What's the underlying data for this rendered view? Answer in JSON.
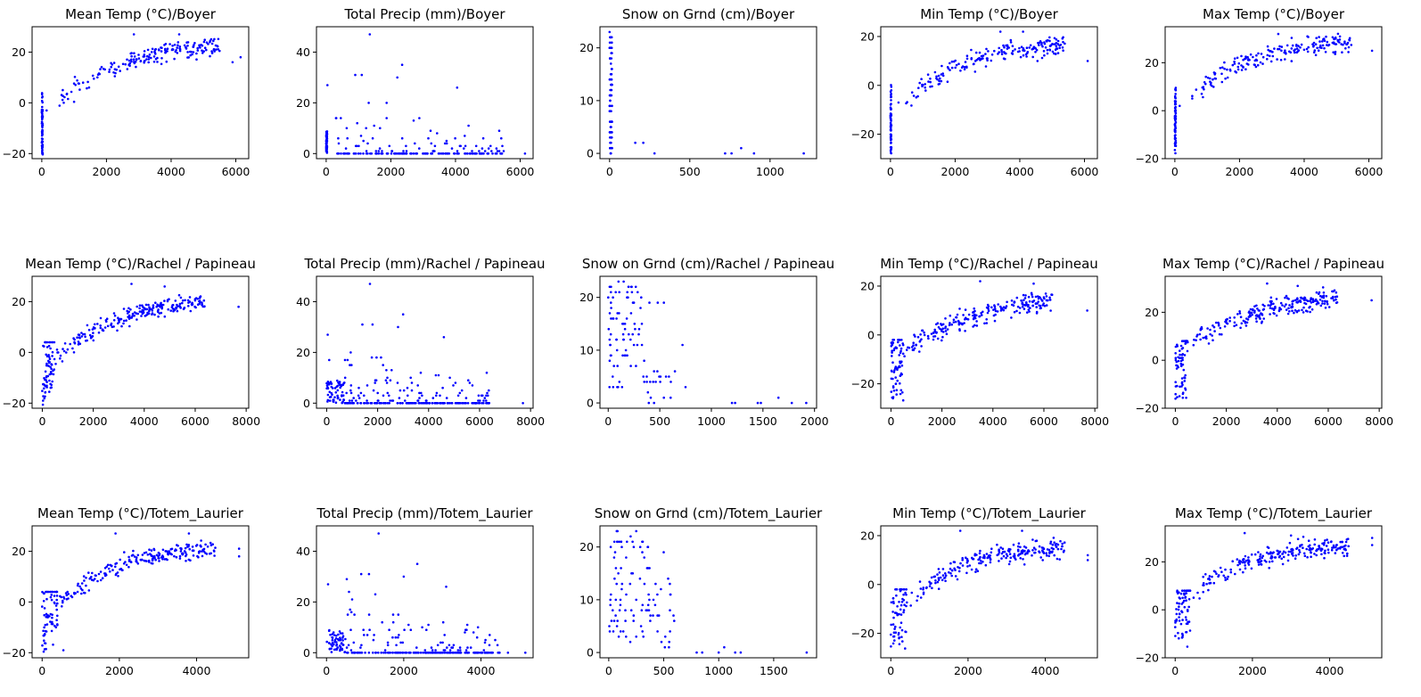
{
  "figure_title": "",
  "chart_data": [
    {
      "type": "scatter",
      "title": "Mean Temp (°C)/Boyer",
      "color": "#0000ff",
      "xlim": [
        -300,
        6400
      ],
      "ylim": [
        -22,
        30
      ],
      "xticks": [
        0,
        2000,
        4000,
        6000
      ],
      "yticks": [
        -20,
        0,
        20
      ],
      "seed": 11,
      "clusters": [
        {
          "n": 60,
          "x": [
            0,
            30
          ],
          "y": [
            -21,
            4
          ]
        }
      ],
      "trend": {
        "n": 190,
        "x": [
          400,
          5500
        ],
        "y0": -2,
        "ymax": 24,
        "k": 0.9,
        "spread": 6
      },
      "points": [
        [
          6150,
          18
        ],
        [
          5900,
          16
        ],
        [
          2850,
          27
        ],
        [
          4250,
          27
        ],
        [
          150,
          -3
        ]
      ]
    },
    {
      "type": "scatter",
      "title": "Total Precip (mm)/Boyer",
      "color": "#0000ff",
      "xlim": [
        -300,
        6400
      ],
      "ylim": [
        -2,
        50
      ],
      "xticks": [
        0,
        2000,
        4000,
        6000
      ],
      "yticks": [
        0,
        20,
        40
      ],
      "seed": 12,
      "clusters": [
        {
          "n": 50,
          "x": [
            0,
            30
          ],
          "y": [
            0,
            9
          ]
        }
      ],
      "precip": {
        "n": 200,
        "x": [
          300,
          5500
        ],
        "zeroFrac": 0.55,
        "decay": 0.00025
      },
      "points": [
        [
          1350,
          47
        ],
        [
          4050,
          26
        ],
        [
          6150,
          0
        ],
        [
          2350,
          35
        ],
        [
          900,
          31
        ],
        [
          1100,
          31
        ],
        [
          2200,
          30
        ],
        [
          40,
          27
        ]
      ]
    },
    {
      "type": "scatter",
      "title": "Snow on Grnd (cm)/Boyer",
      "color": "#0000ff",
      "xlim": [
        -60,
        1290
      ],
      "ylim": [
        -1,
        24
      ],
      "xticks": [
        0,
        500,
        1000
      ],
      "yticks": [
        0,
        10,
        20
      ],
      "seed": 13,
      "clusters": [
        {
          "n": 90,
          "x": [
            0,
            15
          ],
          "y": [
            0,
            23
          ],
          "round": true
        }
      ],
      "points": [
        [
          160,
          2
        ],
        [
          210,
          2
        ],
        [
          280,
          0
        ],
        [
          720,
          0
        ],
        [
          760,
          0
        ],
        [
          820,
          1
        ],
        [
          900,
          0
        ],
        [
          1210,
          0
        ],
        [
          0,
          23
        ],
        [
          5,
          22
        ]
      ]
    },
    {
      "type": "scatter",
      "title": "Min Temp (°C)/Boyer",
      "color": "#0000ff",
      "xlim": [
        -300,
        6400
      ],
      "ylim": [
        -30,
        24
      ],
      "xticks": [
        0,
        2000,
        4000,
        6000
      ],
      "yticks": [
        -20,
        0,
        20
      ],
      "seed": 14,
      "clusters": [
        {
          "n": 60,
          "x": [
            0,
            30
          ],
          "y": [
            -28,
            2
          ]
        }
      ],
      "trend": {
        "n": 190,
        "x": [
          400,
          5500
        ],
        "y0": -7,
        "ymax": 18,
        "k": 0.9,
        "spread": 7
      },
      "points": [
        [
          6100,
          10
        ],
        [
          4100,
          22
        ],
        [
          3400,
          22
        ],
        [
          250,
          -7
        ]
      ]
    },
    {
      "type": "scatter",
      "title": "Max Temp (°C)/Boyer",
      "color": "#0000ff",
      "xlim": [
        -300,
        6400
      ],
      "ylim": [
        -20,
        35
      ],
      "xticks": [
        0,
        2000,
        4000,
        6000
      ],
      "yticks": [
        -20,
        0,
        20
      ],
      "seed": 15,
      "clusters": [
        {
          "n": 60,
          "x": [
            0,
            30
          ],
          "y": [
            -18,
            10
          ]
        }
      ],
      "trend": {
        "n": 190,
        "x": [
          400,
          5500
        ],
        "y0": 5,
        "ymax": 30,
        "k": 0.9,
        "spread": 7
      },
      "points": [
        [
          6100,
          25
        ],
        [
          3200,
          32
        ],
        [
          4100,
          31
        ],
        [
          150,
          2
        ]
      ]
    },
    {
      "type": "scatter",
      "title": "Mean Temp (°C)/Rachel / Papineau",
      "color": "#0000ff",
      "xlim": [
        -400,
        8100
      ],
      "ylim": [
        -22,
        30
      ],
      "xticks": [
        0,
        2000,
        4000,
        6000,
        8000
      ],
      "yticks": [
        -20,
        0,
        20
      ],
      "seed": 21,
      "clusters": [
        {
          "n": 70,
          "x": [
            0,
            500
          ],
          "y": [
            -21,
            4
          ],
          "slope": 0.03
        }
      ],
      "trend": {
        "n": 220,
        "x": [
          500,
          6400
        ],
        "y0": -2,
        "ymax": 23,
        "k": 0.7,
        "spread": 6
      },
      "points": [
        [
          7700,
          18
        ],
        [
          3500,
          27
        ],
        [
          4800,
          26
        ]
      ]
    },
    {
      "type": "scatter",
      "title": "Total Precip (mm)/Rachel / Papineau",
      "color": "#0000ff",
      "xlim": [
        -400,
        8100
      ],
      "ylim": [
        -2,
        50
      ],
      "xticks": [
        0,
        2000,
        4000,
        6000,
        8000
      ],
      "yticks": [
        0,
        20,
        40
      ],
      "seed": 22,
      "clusters": [
        {
          "n": 60,
          "x": [
            0,
            700
          ],
          "y": [
            0,
            9
          ]
        }
      ],
      "precip": {
        "n": 230,
        "x": [
          700,
          6400
        ],
        "zeroFrac": 0.55,
        "decay": 0.0002
      },
      "points": [
        [
          1700,
          47
        ],
        [
          4600,
          26
        ],
        [
          7700,
          0
        ],
        [
          3000,
          35
        ],
        [
          1400,
          31
        ],
        [
          1800,
          31
        ],
        [
          2800,
          30
        ],
        [
          40,
          27
        ],
        [
          100,
          17
        ]
      ]
    },
    {
      "type": "scatter",
      "title": "Snow on Grnd (cm)/Rachel / Papineau",
      "color": "#0000ff",
      "xlim": [
        -80,
        2020
      ],
      "ylim": [
        -1,
        24
      ],
      "xticks": [
        0,
        500,
        1000,
        1500,
        2000
      ],
      "yticks": [
        0,
        10,
        20
      ],
      "seed": 23,
      "clusters": [
        {
          "n": 80,
          "x": [
            0,
            350
          ],
          "y": [
            2,
            23
          ],
          "round": true
        },
        {
          "n": 20,
          "x": [
            350,
            650
          ],
          "y": [
            0,
            6
          ],
          "round": true
        }
      ],
      "points": [
        [
          720,
          11
        ],
        [
          750,
          3
        ],
        [
          1200,
          0
        ],
        [
          1230,
          0
        ],
        [
          1450,
          0
        ],
        [
          1480,
          0
        ],
        [
          1650,
          1
        ],
        [
          1780,
          0
        ],
        [
          1920,
          0
        ],
        [
          100,
          23
        ],
        [
          150,
          23
        ],
        [
          400,
          19
        ],
        [
          480,
          19
        ],
        [
          540,
          19
        ]
      ]
    },
    {
      "type": "scatter",
      "title": "Min Temp (°C)/Rachel / Papineau",
      "color": "#0000ff",
      "xlim": [
        -400,
        8100
      ],
      "ylim": [
        -30,
        24
      ],
      "xticks": [
        0,
        2000,
        4000,
        6000,
        8000
      ],
      "yticks": [
        -20,
        0,
        20
      ],
      "seed": 24,
      "clusters": [
        {
          "n": 70,
          "x": [
            0,
            500
          ],
          "y": [
            -28,
            -2
          ],
          "slope": 0.03
        }
      ],
      "trend": {
        "n": 220,
        "x": [
          500,
          6400
        ],
        "y0": -8,
        "ymax": 17,
        "k": 0.7,
        "spread": 7
      },
      "points": [
        [
          7700,
          10
        ],
        [
          3500,
          22
        ],
        [
          5600,
          21
        ]
      ]
    },
    {
      "type": "scatter",
      "title": "Max Temp (°C)/Rachel / Papineau",
      "color": "#0000ff",
      "xlim": [
        -400,
        8100
      ],
      "ylim": [
        -20,
        35
      ],
      "xticks": [
        0,
        2000,
        4000,
        6000,
        8000
      ],
      "yticks": [
        -20,
        0,
        20
      ],
      "seed": 25,
      "clusters": [
        {
          "n": 70,
          "x": [
            0,
            500
          ],
          "y": [
            -18,
            8
          ],
          "slope": 0.03
        }
      ],
      "trend": {
        "n": 220,
        "x": [
          500,
          6400
        ],
        "y0": 5,
        "ymax": 29,
        "k": 0.7,
        "spread": 7
      },
      "points": [
        [
          7700,
          25
        ],
        [
          3600,
          32
        ],
        [
          4800,
          31
        ]
      ]
    },
    {
      "type": "scatter",
      "title": "Mean Temp (°C)/Totem_Laurier",
      "color": "#0000ff",
      "xlim": [
        -260,
        5350
      ],
      "ylim": [
        -22,
        30
      ],
      "xticks": [
        0,
        2000,
        4000
      ],
      "yticks": [
        -20,
        0,
        20
      ],
      "seed": 31,
      "clusters": [
        {
          "n": 70,
          "x": [
            0,
            400
          ],
          "y": [
            -21,
            4
          ],
          "slope": 0.04
        }
      ],
      "trend": {
        "n": 220,
        "x": [
          400,
          4500
        ],
        "y0": -2,
        "ymax": 22,
        "k": 1.0,
        "spread": 6
      },
      "points": [
        [
          5100,
          21
        ],
        [
          5100,
          18
        ],
        [
          1900,
          27
        ],
        [
          3800,
          27
        ],
        [
          550,
          -19
        ]
      ]
    },
    {
      "type": "scatter",
      "title": "Total Precip (mm)/Totem_Laurier",
      "color": "#0000ff",
      "xlim": [
        -260,
        5350
      ],
      "ylim": [
        -2,
        50
      ],
      "xticks": [
        0,
        2000,
        4000
      ],
      "yticks": [
        0,
        20,
        40
      ],
      "seed": 32,
      "clusters": [
        {
          "n": 60,
          "x": [
            0,
            500
          ],
          "y": [
            0,
            9
          ]
        }
      ],
      "precip": {
        "n": 230,
        "x": [
          500,
          4500
        ],
        "zeroFrac": 0.55,
        "decay": 0.0003
      },
      "points": [
        [
          1350,
          47
        ],
        [
          3100,
          26
        ],
        [
          5150,
          0
        ],
        [
          2350,
          35
        ],
        [
          900,
          31
        ],
        [
          1100,
          31
        ],
        [
          2000,
          30
        ],
        [
          40,
          27
        ],
        [
          4700,
          0
        ]
      ]
    },
    {
      "type": "scatter",
      "title": "Snow on Grnd (cm)/Totem_Laurier",
      "color": "#0000ff",
      "xlim": [
        -80,
        1890
      ],
      "ylim": [
        -1,
        24
      ],
      "xticks": [
        0,
        500,
        1000,
        1500
      ],
      "yticks": [
        0,
        10,
        20
      ],
      "seed": 33,
      "clusters": [
        {
          "n": 80,
          "x": [
            0,
            400
          ],
          "y": [
            2,
            23
          ],
          "round": true
        },
        {
          "n": 20,
          "x": [
            400,
            600
          ],
          "y": [
            0,
            14
          ],
          "round": true
        }
      ],
      "points": [
        [
          800,
          0
        ],
        [
          850,
          0
        ],
        [
          1000,
          0
        ],
        [
          1050,
          1
        ],
        [
          1150,
          0
        ],
        [
          1200,
          0
        ],
        [
          1800,
          0
        ],
        [
          80,
          23
        ],
        [
          250,
          23
        ],
        [
          500,
          19
        ],
        [
          540,
          14
        ],
        [
          560,
          11
        ]
      ]
    },
    {
      "type": "scatter",
      "title": "Min Temp (°C)/Totem_Laurier",
      "color": "#0000ff",
      "xlim": [
        -260,
        5350
      ],
      "ylim": [
        -30,
        24
      ],
      "xticks": [
        0,
        2000,
        4000
      ],
      "yticks": [
        -20,
        0,
        20
      ],
      "seed": 34,
      "clusters": [
        {
          "n": 70,
          "x": [
            0,
            400
          ],
          "y": [
            -28,
            -2
          ],
          "slope": 0.04
        }
      ],
      "trend": {
        "n": 220,
        "x": [
          400,
          4500
        ],
        "y0": -8,
        "ymax": 16,
        "k": 1.0,
        "spread": 7
      },
      "points": [
        [
          5100,
          12
        ],
        [
          5100,
          10
        ],
        [
          1800,
          22
        ],
        [
          3400,
          22
        ]
      ]
    },
    {
      "type": "scatter",
      "title": "Max Temp (°C)/Totem_Laurier",
      "color": "#0000ff",
      "xlim": [
        -260,
        5350
      ],
      "ylim": [
        -20,
        35
      ],
      "xticks": [
        0,
        2000,
        4000
      ],
      "yticks": [
        -20,
        0,
        20
      ],
      "seed": 35,
      "clusters": [
        {
          "n": 70,
          "x": [
            0,
            400
          ],
          "y": [
            -18,
            8
          ],
          "slope": 0.04
        }
      ],
      "trend": {
        "n": 220,
        "x": [
          400,
          4500
        ],
        "y0": 5,
        "ymax": 28,
        "k": 1.0,
        "spread": 7
      },
      "points": [
        [
          5100,
          30
        ],
        [
          5100,
          27
        ],
        [
          1800,
          32
        ],
        [
          3000,
          31
        ]
      ]
    }
  ]
}
